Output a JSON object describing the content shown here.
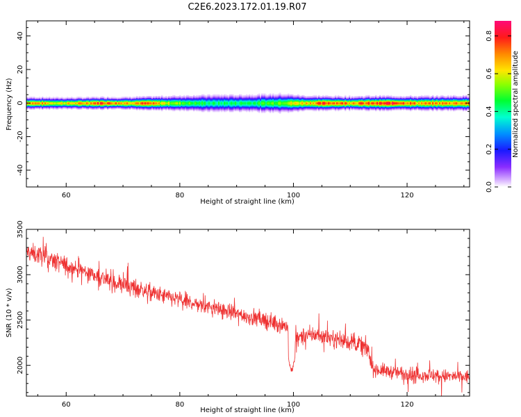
{
  "figure": {
    "title": "C2E6.2023.172.01.19.R07"
  },
  "chart_data": [
    {
      "type": "heatmap",
      "xlabel": "Height of straight line (km)",
      "ylabel": "Frequency (Hz)",
      "xlim": [
        53,
        131
      ],
      "ylim": [
        -50,
        49
      ],
      "xticks": [
        "60",
        "80",
        "100",
        "120"
      ],
      "xtick_values": [
        60,
        80,
        100,
        120
      ],
      "yticks": [
        "40",
        "20",
        "0",
        "-20",
        "-40"
      ],
      "ytick_values": [
        40,
        20,
        0,
        -20,
        -40
      ],
      "colorbar": {
        "label": "Normalized spectral amplitude",
        "range": [
          0.0,
          0.88
        ],
        "ticks": [
          "0.0",
          "0.2",
          "0.4",
          "0.6",
          "0.8"
        ],
        "tick_values": [
          0.0,
          0.2,
          0.4,
          0.6,
          0.8
        ],
        "colormap": "gist_rainbow_r"
      },
      "description_profile": {
        "heights_km": [
          54,
          58,
          62,
          66,
          70,
          74,
          78,
          82,
          86,
          90,
          94,
          98,
          102,
          106,
          110,
          114,
          118,
          122,
          126,
          130
        ],
        "peak_amplitude": [
          0.72,
          0.62,
          0.66,
          0.8,
          0.7,
          0.74,
          0.58,
          0.48,
          0.42,
          0.44,
          0.46,
          0.56,
          0.66,
          0.78,
          0.72,
          0.74,
          0.82,
          0.68,
          0.7,
          0.72
        ],
        "halfwidth_hz": [
          2.4,
          2.3,
          2.3,
          2.4,
          2.4,
          2.6,
          2.9,
          3.3,
          3.5,
          3.5,
          3.6,
          3.8,
          3.0,
          2.8,
          2.7,
          2.9,
          2.8,
          2.8,
          2.9,
          3.0
        ]
      }
    },
    {
      "type": "line",
      "xlabel": "Height of straight line (km)",
      "ylabel": "SNR (10 * v/v)",
      "xlim": [
        53,
        131
      ],
      "ylim": [
        1660,
        3500
      ],
      "xticks": [
        "60",
        "80",
        "100",
        "120"
      ],
      "xtick_values": [
        60,
        80,
        100,
        120
      ],
      "yticks": [
        "3500",
        "3000",
        "2500",
        "2000"
      ],
      "ytick_values": [
        3500,
        3000,
        2500,
        2000
      ],
      "color": "#ee3030",
      "trend": {
        "x": [
          53,
          56,
          60,
          64,
          68,
          72,
          76,
          80,
          84,
          88,
          92,
          96,
          99,
          100,
          104,
          108,
          112,
          113,
          114,
          118,
          122,
          126,
          131
        ],
        "y": [
          3250,
          3200,
          3100,
          3020,
          2920,
          2860,
          2780,
          2720,
          2660,
          2600,
          2540,
          2480,
          2430,
          2300,
          2340,
          2280,
          2230,
          2180,
          1960,
          1920,
          1900,
          1880,
          1870
        ]
      },
      "dips": [
        {
          "x": 99.7,
          "y": 1900
        }
      ]
    }
  ]
}
